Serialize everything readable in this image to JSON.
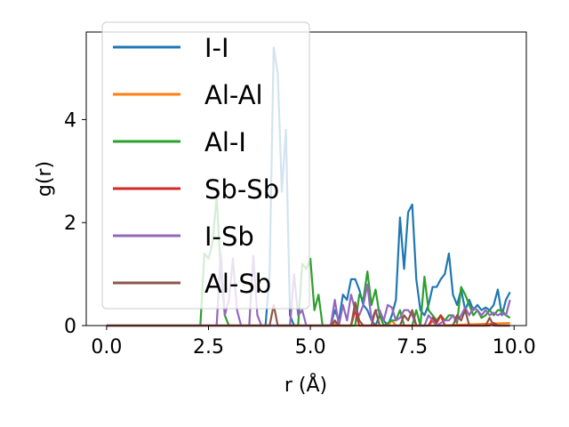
{
  "chart_data": {
    "type": "line",
    "xlabel": "r (Å)",
    "ylabel": "g(r)",
    "xlim": [
      -0.5,
      10.3
    ],
    "ylim": [
      0,
      5.7
    ],
    "xticks": [
      0.0,
      2.5,
      5.0,
      7.5,
      10.0
    ],
    "xtick_labels": [
      "0.0",
      "2.5",
      "5.0",
      "7.5",
      "10.0"
    ],
    "yticks": [
      0,
      2,
      4
    ],
    "ytick_labels": [
      "0",
      "2",
      "4"
    ],
    "legend_position": "upper-left",
    "grid": false,
    "series": [
      {
        "name": "I-I",
        "color": "#1f77b4",
        "points": [
          [
            0,
            0
          ],
          [
            3.9,
            0
          ],
          [
            4.0,
            1.0
          ],
          [
            4.1,
            5.4
          ],
          [
            4.2,
            4.9
          ],
          [
            4.3,
            2.6
          ],
          [
            4.4,
            3.8
          ],
          [
            4.5,
            0.2
          ],
          [
            4.6,
            0
          ],
          [
            5.5,
            0
          ],
          [
            5.6,
            0.3
          ],
          [
            5.7,
            0.1
          ],
          [
            5.8,
            0.6
          ],
          [
            5.9,
            0.5
          ],
          [
            6.0,
            0.9
          ],
          [
            6.1,
            0.9
          ],
          [
            6.2,
            0.7
          ],
          [
            6.3,
            0.4
          ],
          [
            6.4,
            0.3
          ],
          [
            6.5,
            0.1
          ],
          [
            6.6,
            0
          ],
          [
            6.7,
            0.2
          ],
          [
            6.8,
            0.1
          ],
          [
            6.9,
            0
          ],
          [
            7.0,
            0.2
          ],
          [
            7.1,
            0.5
          ],
          [
            7.2,
            2.1
          ],
          [
            7.3,
            1.1
          ],
          [
            7.4,
            2.2
          ],
          [
            7.5,
            2.35
          ],
          [
            7.6,
            0.9
          ],
          [
            7.7,
            0.3
          ],
          [
            7.8,
            0.2
          ],
          [
            7.9,
            0.4
          ],
          [
            8.0,
            0.75
          ],
          [
            8.1,
            0.75
          ],
          [
            8.2,
            0.9
          ],
          [
            8.3,
            1.0
          ],
          [
            8.4,
            1.4
          ],
          [
            8.5,
            0.6
          ],
          [
            8.6,
            0.4
          ],
          [
            8.7,
            0.7
          ],
          [
            8.8,
            0.3
          ],
          [
            8.9,
            0.5
          ],
          [
            9.0,
            0.3
          ],
          [
            9.1,
            0.4
          ],
          [
            9.2,
            0.3
          ],
          [
            9.3,
            0.35
          ],
          [
            9.4,
            0.3
          ],
          [
            9.5,
            0.4
          ],
          [
            9.6,
            0.7
          ],
          [
            9.7,
            0.2
          ],
          [
            9.8,
            0.5
          ],
          [
            9.9,
            0.65
          ]
        ]
      },
      {
        "name": "Al-Al",
        "color": "#ff7f0e",
        "points": [
          [
            0,
            0
          ],
          [
            5.5,
            0
          ],
          [
            5.6,
            0.05
          ],
          [
            5.7,
            0
          ],
          [
            6.9,
            0
          ],
          [
            7.0,
            0.1
          ],
          [
            7.1,
            0
          ],
          [
            7.9,
            0
          ],
          [
            8.0,
            0.08
          ],
          [
            8.1,
            0
          ],
          [
            9.9,
            0.05
          ]
        ]
      },
      {
        "name": "Al-I",
        "color": "#2ca02c",
        "points": [
          [
            0,
            0
          ],
          [
            2.3,
            0
          ],
          [
            2.4,
            1.4
          ],
          [
            2.5,
            1.3
          ],
          [
            2.6,
            1.6
          ],
          [
            2.7,
            2.5
          ],
          [
            2.8,
            1.1
          ],
          [
            2.9,
            0.2
          ],
          [
            3.0,
            0
          ],
          [
            4.7,
            0
          ],
          [
            4.8,
            1.2
          ],
          [
            4.9,
            1.1
          ],
          [
            5.0,
            1.3
          ],
          [
            5.1,
            0.3
          ],
          [
            5.2,
            0.6
          ],
          [
            5.3,
            0
          ],
          [
            6.1,
            0
          ],
          [
            6.2,
            0.6
          ],
          [
            6.3,
            0.5
          ],
          [
            6.4,
            1.05
          ],
          [
            6.5,
            0.4
          ],
          [
            6.6,
            0.7
          ],
          [
            6.7,
            0.2
          ],
          [
            6.8,
            0
          ],
          [
            7.0,
            0.1
          ],
          [
            7.1,
            0.1
          ],
          [
            7.2,
            0.3
          ],
          [
            7.3,
            0
          ],
          [
            7.5,
            0
          ],
          [
            7.6,
            0.3
          ],
          [
            7.7,
            0
          ],
          [
            7.8,
            0.95
          ],
          [
            7.9,
            0.3
          ],
          [
            8.0,
            0.2
          ],
          [
            8.1,
            0.1
          ],
          [
            8.2,
            0.2
          ],
          [
            8.3,
            0.1
          ],
          [
            8.4,
            0.2
          ],
          [
            8.5,
            0.2
          ],
          [
            8.6,
            0.05
          ],
          [
            8.7,
            0.75
          ],
          [
            8.8,
            0.6
          ],
          [
            8.9,
            0.4
          ],
          [
            9.0,
            0.2
          ],
          [
            9.1,
            0.3
          ],
          [
            9.2,
            0.15
          ],
          [
            9.3,
            0.2
          ],
          [
            9.4,
            0.3
          ],
          [
            9.5,
            0.2
          ],
          [
            9.6,
            0.3
          ],
          [
            9.7,
            0.3
          ],
          [
            9.8,
            0.2
          ],
          [
            9.9,
            0.15
          ]
        ]
      },
      {
        "name": "Sb-Sb",
        "color": "#d62728",
        "points": [
          [
            0,
            0
          ],
          [
            6.0,
            0
          ],
          [
            6.1,
            0.3
          ],
          [
            6.2,
            0
          ],
          [
            7.9,
            0
          ],
          [
            8.0,
            0.15
          ],
          [
            8.1,
            0.05
          ],
          [
            8.2,
            0.2
          ],
          [
            8.3,
            0
          ],
          [
            9.4,
            0
          ],
          [
            9.5,
            0.05
          ],
          [
            9.6,
            0
          ],
          [
            9.9,
            0
          ]
        ]
      },
      {
        "name": "I-Sb",
        "color": "#9467bd",
        "points": [
          [
            0,
            0
          ],
          [
            2.7,
            0
          ],
          [
            2.8,
            1.4
          ],
          [
            2.9,
            0.2
          ],
          [
            3.0,
            0.5
          ],
          [
            3.1,
            1.3
          ],
          [
            3.2,
            0.3
          ],
          [
            3.3,
            0
          ],
          [
            3.5,
            0
          ],
          [
            3.6,
            1.35
          ],
          [
            3.7,
            0.2
          ],
          [
            3.8,
            0
          ],
          [
            4.5,
            0
          ],
          [
            4.6,
            1.0
          ],
          [
            4.7,
            0.2
          ],
          [
            4.8,
            0.3
          ],
          [
            4.9,
            0
          ],
          [
            5.5,
            0
          ],
          [
            5.6,
            0.5
          ],
          [
            5.7,
            0
          ],
          [
            5.8,
            0.4
          ],
          [
            5.9,
            0.1
          ],
          [
            6.0,
            0.6
          ],
          [
            6.1,
            0.3
          ],
          [
            6.2,
            0.2
          ],
          [
            6.3,
            0.4
          ],
          [
            6.4,
            0.8
          ],
          [
            6.5,
            0.1
          ],
          [
            6.6,
            0.3
          ],
          [
            6.7,
            0.3
          ],
          [
            6.8,
            0.1
          ],
          [
            6.9,
            0.4
          ],
          [
            7.0,
            0.35
          ],
          [
            7.1,
            0.1
          ],
          [
            7.2,
            0.15
          ],
          [
            7.3,
            0.3
          ],
          [
            7.4,
            0.3
          ],
          [
            7.5,
            0.2
          ],
          [
            7.6,
            0
          ],
          [
            7.8,
            0
          ],
          [
            7.9,
            0.2
          ],
          [
            8.0,
            0.1
          ],
          [
            8.1,
            0
          ],
          [
            8.3,
            0.1
          ],
          [
            8.4,
            0.1
          ],
          [
            8.5,
            0.2
          ],
          [
            8.6,
            0.1
          ],
          [
            8.7,
            0.2
          ],
          [
            8.8,
            0.35
          ],
          [
            8.9,
            0.2
          ],
          [
            9.0,
            0.35
          ],
          [
            9.1,
            0.3
          ],
          [
            9.2,
            0.2
          ],
          [
            9.3,
            0.3
          ],
          [
            9.4,
            0.2
          ],
          [
            9.5,
            0.25
          ],
          [
            9.6,
            0.2
          ],
          [
            9.7,
            0.25
          ],
          [
            9.8,
            0.2
          ],
          [
            9.9,
            0.5
          ]
        ]
      },
      {
        "name": "Al-Sb",
        "color": "#8c564b",
        "points": [
          [
            0,
            0
          ],
          [
            4.0,
            0
          ],
          [
            4.1,
            0.4
          ],
          [
            4.2,
            0
          ],
          [
            5.5,
            0
          ],
          [
            5.6,
            0.1
          ],
          [
            5.7,
            0
          ],
          [
            6.0,
            0
          ],
          [
            6.1,
            0.45
          ],
          [
            6.2,
            0.1
          ],
          [
            6.3,
            0
          ],
          [
            6.5,
            0
          ],
          [
            6.6,
            0.3
          ],
          [
            6.7,
            0
          ],
          [
            7.2,
            0
          ],
          [
            7.3,
            0.2
          ],
          [
            7.4,
            0.1
          ],
          [
            7.5,
            0.3
          ],
          [
            7.6,
            0
          ],
          [
            8.5,
            0
          ],
          [
            8.6,
            0.2
          ],
          [
            8.7,
            0.1
          ],
          [
            8.8,
            0.3
          ],
          [
            8.9,
            0
          ],
          [
            9.3,
            0
          ],
          [
            9.4,
            0.15
          ],
          [
            9.5,
            0
          ],
          [
            9.9,
            0
          ]
        ]
      }
    ]
  }
}
